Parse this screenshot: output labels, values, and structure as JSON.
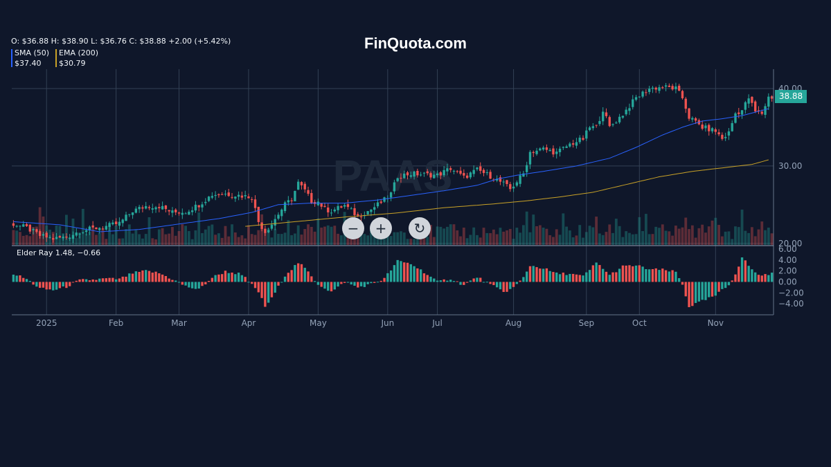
{
  "brand": "FinQuota.com",
  "watermark": "PAAS",
  "ohlc_text": "O: $36.88 H: $38.90 L: $36.76 C: $38.88 +2.00 (+5.42%)",
  "indicators": [
    {
      "label": "SMA (50)",
      "value": "$37.40",
      "color": "#2962ff"
    },
    {
      "label": "EMA (200)",
      "value": "$30.79",
      "color": "#c9a227"
    }
  ],
  "last_price_label": "38.88",
  "elder_label": "Elder Ray 1.48, −0.66",
  "controls": {
    "zoom_out": "−",
    "zoom_in": "+",
    "reset": "↻"
  },
  "colors": {
    "up": "#26a69a",
    "down": "#ef5350",
    "background": "#0f172a",
    "grid": "#334155",
    "axis_text": "#94a3b8"
  },
  "chart_data": {
    "type": "candlestick",
    "x_tick_labels": [
      "2025",
      "Feb",
      "Mar",
      "Apr",
      "May",
      "Jun",
      "Jul",
      "Aug",
      "Sep",
      "Oct",
      "Nov"
    ],
    "x_tick_positions": [
      10,
      31,
      50,
      71,
      92,
      113,
      128,
      151,
      173,
      189,
      212
    ],
    "price_axis": {
      "ticks": [
        "40.00",
        "30.00",
        "20.00"
      ],
      "tick_values": [
        40,
        30,
        20
      ],
      "range": [
        19.8,
        42.5
      ]
    },
    "elder_axis": {
      "ticks": [
        "6.00",
        "4.00",
        "2.00",
        "0.00",
        "−2.00",
        "−4.00"
      ],
      "tick_values": [
        6,
        4,
        2,
        0,
        -2,
        -4
      ],
      "range": [
        -6,
        6.5
      ]
    },
    "close_anchors": [
      [
        0,
        22.5
      ],
      [
        4,
        22
      ],
      [
        8,
        21
      ],
      [
        12,
        20.6
      ],
      [
        16,
        20.8
      ],
      [
        20,
        21.6
      ],
      [
        24,
        21.9
      ],
      [
        28,
        22.2
      ],
      [
        32,
        22.6
      ],
      [
        36,
        24.2
      ],
      [
        40,
        24.8
      ],
      [
        44,
        24.8
      ],
      [
        48,
        24
      ],
      [
        52,
        24.1
      ],
      [
        56,
        25
      ],
      [
        60,
        26.3
      ],
      [
        64,
        26.4
      ],
      [
        68,
        26.2
      ],
      [
        72,
        26
      ],
      [
        74,
        22.8
      ],
      [
        76,
        21.5
      ],
      [
        78,
        22.5
      ],
      [
        80,
        23.8
      ],
      [
        82,
        25
      ],
      [
        84,
        25.7
      ],
      [
        86,
        27.8
      ],
      [
        88,
        26.8
      ],
      [
        90,
        25.4
      ],
      [
        92,
        25.4
      ],
      [
        94,
        24.4
      ],
      [
        96,
        24.2
      ],
      [
        100,
        24.9
      ],
      [
        104,
        23.5
      ],
      [
        108,
        24.4
      ],
      [
        112,
        25.6
      ],
      [
        114,
        26.4
      ],
      [
        116,
        28.7
      ],
      [
        120,
        29
      ],
      [
        124,
        28.9
      ],
      [
        128,
        28.8
      ],
      [
        132,
        29.7
      ],
      [
        136,
        28.5
      ],
      [
        140,
        29.5
      ],
      [
        144,
        28.7
      ],
      [
        148,
        27.7
      ],
      [
        150,
        27
      ],
      [
        152,
        28
      ],
      [
        154,
        29
      ],
      [
        156,
        31.8
      ],
      [
        160,
        32.2
      ],
      [
        164,
        31.7
      ],
      [
        168,
        32.8
      ],
      [
        172,
        33.5
      ],
      [
        174,
        35
      ],
      [
        176,
        35
      ],
      [
        178,
        37.3
      ],
      [
        180,
        35
      ],
      [
        184,
        36.7
      ],
      [
        188,
        38.8
      ],
      [
        192,
        40
      ],
      [
        196,
        40.2
      ],
      [
        200,
        40
      ],
      [
        202,
        38.8
      ],
      [
        204,
        36.3
      ],
      [
        208,
        35
      ],
      [
        212,
        34.5
      ],
      [
        214,
        33.5
      ],
      [
        216,
        34.3
      ],
      [
        218,
        36.8
      ],
      [
        220,
        37.2
      ],
      [
        222,
        38.8
      ],
      [
        224,
        37
      ],
      [
        226,
        36.8
      ],
      [
        228,
        38.88
      ]
    ],
    "sma_50": [
      [
        0,
        22.8
      ],
      [
        14,
        22.4
      ],
      [
        26,
        21.5
      ],
      [
        38,
        21.8
      ],
      [
        50,
        22.5
      ],
      [
        62,
        23.2
      ],
      [
        72,
        24
      ],
      [
        80,
        25
      ],
      [
        90,
        25.2
      ],
      [
        100,
        25.2
      ],
      [
        110,
        25.6
      ],
      [
        120,
        26.2
      ],
      [
        130,
        26.8
      ],
      [
        140,
        27.5
      ],
      [
        146,
        28.3
      ],
      [
        152,
        28.8
      ],
      [
        160,
        29.3
      ],
      [
        170,
        30
      ],
      [
        180,
        31
      ],
      [
        188,
        32.4
      ],
      [
        196,
        34
      ],
      [
        202,
        35
      ],
      [
        208,
        35.8
      ],
      [
        214,
        36.1
      ],
      [
        220,
        36.5
      ],
      [
        228,
        37.4
      ]
    ],
    "ema_200": [
      [
        70,
        22.2
      ],
      [
        85,
        22.8
      ],
      [
        100,
        23.4
      ],
      [
        115,
        23.9
      ],
      [
        130,
        24.6
      ],
      [
        145,
        25.1
      ],
      [
        155,
        25.5
      ],
      [
        165,
        26
      ],
      [
        175,
        26.6
      ],
      [
        185,
        27.6
      ],
      [
        195,
        28.6
      ],
      [
        205,
        29.3
      ],
      [
        215,
        29.8
      ],
      [
        223,
        30.2
      ],
      [
        228,
        30.79
      ]
    ],
    "elder_anchors": [
      [
        0,
        1.5
      ],
      [
        4,
        0.5
      ],
      [
        8,
        -1.2
      ],
      [
        12,
        -1.5
      ],
      [
        16,
        -0.9
      ],
      [
        20,
        0.3
      ],
      [
        24,
        0.4
      ],
      [
        28,
        0.6
      ],
      [
        32,
        0.5
      ],
      [
        36,
        1.6
      ],
      [
        40,
        2
      ],
      [
        44,
        1.6
      ],
      [
        48,
        0.5
      ],
      [
        52,
        -0.8
      ],
      [
        56,
        -1.4
      ],
      [
        60,
        0.8
      ],
      [
        64,
        1.9
      ],
      [
        68,
        1.5
      ],
      [
        70,
        0.7
      ],
      [
        74,
        -1.8
      ],
      [
        76,
        -4.5
      ],
      [
        78,
        -3
      ],
      [
        82,
        1.2
      ],
      [
        86,
        3.5
      ],
      [
        88,
        2.5
      ],
      [
        90,
        1
      ],
      [
        92,
        -0.4
      ],
      [
        96,
        -1.8
      ],
      [
        98,
        -1
      ],
      [
        100,
        0
      ],
      [
        104,
        -1
      ],
      [
        108,
        -0.4
      ],
      [
        112,
        0.6
      ],
      [
        114,
        2.2
      ],
      [
        116,
        3.8
      ],
      [
        120,
        3.3
      ],
      [
        124,
        1.8
      ],
      [
        128,
        0
      ],
      [
        132,
        0.6
      ],
      [
        136,
        -0.6
      ],
      [
        140,
        0.9
      ],
      [
        144,
        -0.5
      ],
      [
        148,
        -1.8
      ],
      [
        150,
        -1.4
      ],
      [
        152,
        -0.5
      ],
      [
        154,
        0.8
      ],
      [
        156,
        3
      ],
      [
        160,
        2.5
      ],
      [
        164,
        1.5
      ],
      [
        168,
        1.5
      ],
      [
        172,
        1
      ],
      [
        174,
        2.2
      ],
      [
        176,
        3.5
      ],
      [
        178,
        2.5
      ],
      [
        180,
        1.2
      ],
      [
        184,
        2.8
      ],
      [
        188,
        3
      ],
      [
        192,
        2.3
      ],
      [
        196,
        2.2
      ],
      [
        200,
        1.8
      ],
      [
        202,
        -0.5
      ],
      [
        204,
        -4.5
      ],
      [
        208,
        -3.5
      ],
      [
        212,
        -2.5
      ],
      [
        214,
        -1.5
      ],
      [
        216,
        -0.6
      ],
      [
        218,
        1.5
      ],
      [
        220,
        4.5
      ],
      [
        222,
        3
      ],
      [
        224,
        1.6
      ],
      [
        226,
        1.2
      ],
      [
        228,
        1.48
      ]
    ],
    "volume_max_label": "20.00"
  }
}
